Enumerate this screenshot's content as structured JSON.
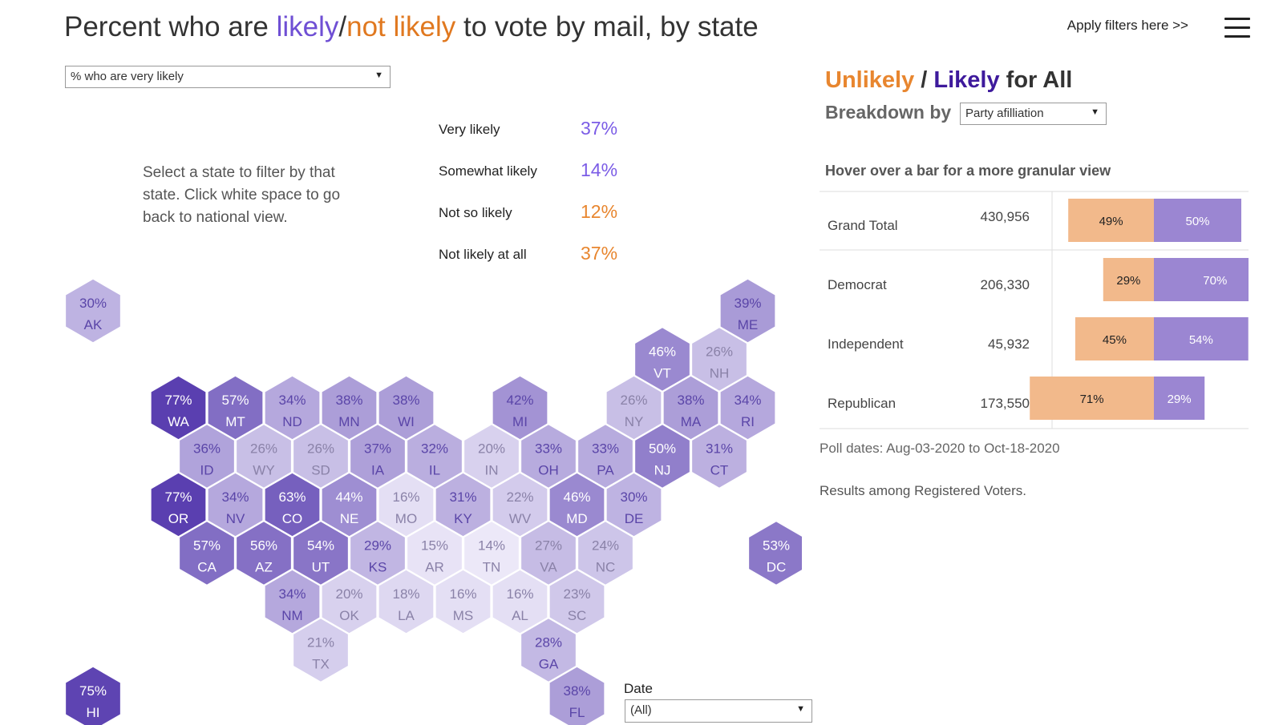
{
  "header": {
    "title_part1": "Percent who are ",
    "title_likely": "likely",
    "title_sep": "/",
    "title_notlikely": "not likely",
    "title_part2": " to vote by mail, by state",
    "apply_filters": "Apply filters here >>"
  },
  "measure_select": {
    "value": "% who are very likely"
  },
  "instructions": "Select a state to filter by that state. Click white space to go back to national view.",
  "summary": [
    {
      "label": "Very likely",
      "value": "37%",
      "kind": "likely"
    },
    {
      "label": "Somewhat likely",
      "value": "14%",
      "kind": "likely"
    },
    {
      "label": "Not so likely",
      "value": "12%",
      "kind": "unlikely"
    },
    {
      "label": "Not likely at all",
      "value": "37%",
      "kind": "unlikely"
    }
  ],
  "date_filter": {
    "label": "Date",
    "value": "(All)"
  },
  "panel": {
    "title_unlikely": "Unlikely",
    "title_sep": " / ",
    "title_likely": "Likely",
    "title_rest": " for All",
    "breakdown_label": "Breakdown by",
    "breakdown_value": "Party afilliation",
    "hover_hint": "Hover over a bar for a more granular view",
    "poll_dates": "Poll dates: Aug-03-2020 to Oct-18-2020",
    "results_note": "Results among Registered Voters."
  },
  "colors": {
    "likely_text": "#7b5ce6",
    "unlikely_text": "#e8862f",
    "bar_unlikely": "#f2b98b",
    "bar_likely": "#9b86d2",
    "hex_scale_low": "#ece8f8",
    "hex_scale_high": "#5a3fb0"
  },
  "chart_data": [
    {
      "type": "hex-tile-map",
      "measure": "% who are very likely",
      "states": [
        {
          "abbr": "AK",
          "value": 30,
          "row": 0,
          "col": 0
        },
        {
          "abbr": "ME",
          "value": 39,
          "row": 0,
          "col": 23
        },
        {
          "abbr": "VT",
          "value": 46,
          "row": 1,
          "col": 20
        },
        {
          "abbr": "NH",
          "value": 26,
          "row": 1,
          "col": 22
        },
        {
          "abbr": "WA",
          "value": 77,
          "row": 2,
          "col": 3
        },
        {
          "abbr": "MT",
          "value": 57,
          "row": 2,
          "col": 5
        },
        {
          "abbr": "ND",
          "value": 34,
          "row": 2,
          "col": 7
        },
        {
          "abbr": "MN",
          "value": 38,
          "row": 2,
          "col": 9
        },
        {
          "abbr": "WI",
          "value": 38,
          "row": 2,
          "col": 11
        },
        {
          "abbr": "MI",
          "value": 42,
          "row": 2,
          "col": 15
        },
        {
          "abbr": "NY",
          "value": 26,
          "row": 2,
          "col": 19
        },
        {
          "abbr": "MA",
          "value": 38,
          "row": 2,
          "col": 21
        },
        {
          "abbr": "RI",
          "value": 34,
          "row": 2,
          "col": 23
        },
        {
          "abbr": "ID",
          "value": 36,
          "row": 3,
          "col": 4
        },
        {
          "abbr": "WY",
          "value": 26,
          "row": 3,
          "col": 6
        },
        {
          "abbr": "SD",
          "value": 26,
          "row": 3,
          "col": 8
        },
        {
          "abbr": "IA",
          "value": 37,
          "row": 3,
          "col": 10
        },
        {
          "abbr": "IL",
          "value": 32,
          "row": 3,
          "col": 12
        },
        {
          "abbr": "IN",
          "value": 20,
          "row": 3,
          "col": 14
        },
        {
          "abbr": "OH",
          "value": 33,
          "row": 3,
          "col": 16
        },
        {
          "abbr": "PA",
          "value": 33,
          "row": 3,
          "col": 18
        },
        {
          "abbr": "NJ",
          "value": 50,
          "row": 3,
          "col": 20
        },
        {
          "abbr": "CT",
          "value": 31,
          "row": 3,
          "col": 22
        },
        {
          "abbr": "OR",
          "value": 77,
          "row": 4,
          "col": 3
        },
        {
          "abbr": "NV",
          "value": 34,
          "row": 4,
          "col": 5
        },
        {
          "abbr": "CO",
          "value": 63,
          "row": 4,
          "col": 7
        },
        {
          "abbr": "NE",
          "value": 44,
          "row": 4,
          "col": 9
        },
        {
          "abbr": "MO",
          "value": 16,
          "row": 4,
          "col": 11
        },
        {
          "abbr": "KY",
          "value": 31,
          "row": 4,
          "col": 13
        },
        {
          "abbr": "WV",
          "value": 22,
          "row": 4,
          "col": 15
        },
        {
          "abbr": "MD",
          "value": 46,
          "row": 4,
          "col": 17
        },
        {
          "abbr": "DE",
          "value": 30,
          "row": 4,
          "col": 19
        },
        {
          "abbr": "CA",
          "value": 57,
          "row": 5,
          "col": 4
        },
        {
          "abbr": "AZ",
          "value": 56,
          "row": 5,
          "col": 6
        },
        {
          "abbr": "UT",
          "value": 54,
          "row": 5,
          "col": 8
        },
        {
          "abbr": "KS",
          "value": 29,
          "row": 5,
          "col": 10
        },
        {
          "abbr": "AR",
          "value": 15,
          "row": 5,
          "col": 12
        },
        {
          "abbr": "TN",
          "value": 14,
          "row": 5,
          "col": 14
        },
        {
          "abbr": "VA",
          "value": 27,
          "row": 5,
          "col": 16
        },
        {
          "abbr": "NC",
          "value": 24,
          "row": 5,
          "col": 18
        },
        {
          "abbr": "DC",
          "value": 53,
          "row": 5,
          "col": 24
        },
        {
          "abbr": "NM",
          "value": 34,
          "row": 6,
          "col": 7
        },
        {
          "abbr": "OK",
          "value": 20,
          "row": 6,
          "col": 9
        },
        {
          "abbr": "LA",
          "value": 18,
          "row": 6,
          "col": 11
        },
        {
          "abbr": "MS",
          "value": 16,
          "row": 6,
          "col": 13
        },
        {
          "abbr": "AL",
          "value": 16,
          "row": 6,
          "col": 15
        },
        {
          "abbr": "SC",
          "value": 23,
          "row": 6,
          "col": 17
        },
        {
          "abbr": "TX",
          "value": 21,
          "row": 7,
          "col": 8
        },
        {
          "abbr": "GA",
          "value": 28,
          "row": 7,
          "col": 16
        },
        {
          "abbr": "HI",
          "value": 75,
          "row": 8,
          "col": 0
        },
        {
          "abbr": "FL",
          "value": 38,
          "row": 8,
          "col": 17
        }
      ]
    },
    {
      "type": "bar",
      "orientation": "horizontal-diverging",
      "title": "Unlikely / Likely for All",
      "breakdown": "Party afilliation",
      "rows": [
        {
          "label": "Grand Total",
          "count": "430,956",
          "unlikely": 49,
          "likely": 50
        },
        {
          "label": "Democrat",
          "count": "206,330",
          "unlikely": 29,
          "likely": 70
        },
        {
          "label": "Independent",
          "count": "45,932",
          "unlikely": 45,
          "likely": 54
        },
        {
          "label": "Republican",
          "count": "173,550",
          "unlikely": 71,
          "likely": 29
        }
      ]
    }
  ]
}
